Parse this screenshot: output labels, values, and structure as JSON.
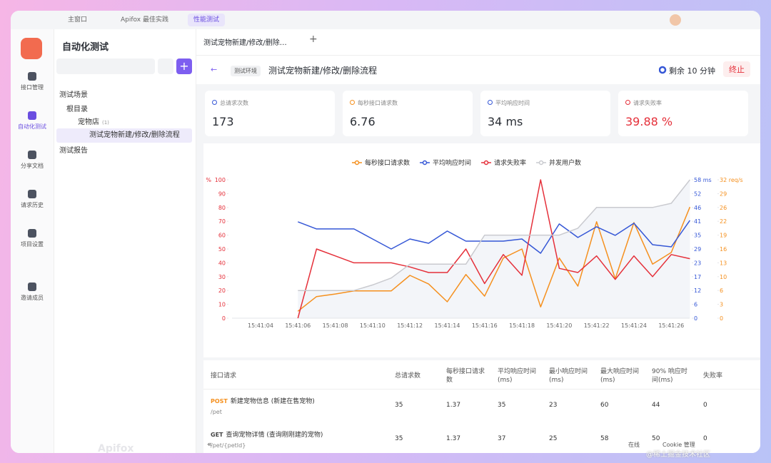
{
  "tabs": [
    "主窗口",
    "Apifox 最佳实践",
    "性能测试"
  ],
  "sidebar": [
    "接口管理",
    "自动化测试",
    "分享文档",
    "请求历史",
    "项目设置",
    "邀请成员"
  ],
  "panel": {
    "title": "自动化测试",
    "tree": [
      "测试场景",
      "根目录",
      "宠物店",
      "(1)",
      "测试宠物新建/修改/删除流程",
      "测试报告"
    ],
    "watermark": "Apifox"
  },
  "main": {
    "tab": "测试宠物新建/修改/删除流程",
    "env": "测试环境",
    "title": "测试宠物新建/修改/删除流程",
    "remaining": "剩余 10 分钟",
    "stop": "终止"
  },
  "stats": [
    {
      "label": "总请求次数",
      "value": "173"
    },
    {
      "label": "每秒接口请求数",
      "value": "6.76"
    },
    {
      "label": "平均响应时间",
      "value": "34 ms"
    },
    {
      "label": "请求失败率",
      "value": "39.88 %"
    }
  ],
  "chart_data": {
    "type": "line",
    "ylabel": "%",
    "categories": [
      "15:41:04",
      null,
      "15:41:06",
      null,
      "15:41:08",
      null,
      "15:41:10",
      null,
      "15:41:12",
      null,
      "15:41:14",
      null,
      "15:41:16",
      null,
      "15:41:18",
      null,
      "15:41:20",
      null,
      "15:41:22",
      null,
      "15:41:24",
      null,
      "15:41:26",
      null
    ],
    "ylim": [
      0,
      100
    ],
    "yticks": [
      0,
      10,
      20,
      30,
      40,
      50,
      60,
      70,
      80,
      90,
      100
    ],
    "y2lim": [
      0,
      58
    ],
    "y2ticks": [
      0,
      {
        "value": 5.8,
        "label": "6"
      },
      {
        "value": 11.6,
        "label": "12"
      },
      {
        "value": 17.4,
        "label": "17"
      },
      {
        "value": 23.2,
        "label": "23"
      },
      29,
      {
        "value": 34.8,
        "label": "35"
      },
      {
        "value": 40.6,
        "label": "41"
      },
      {
        "value": 46.4,
        "label": "46"
      },
      {
        "value": 52.2,
        "label": "52"
      },
      {
        "value": 58,
        "label": "58 ms"
      }
    ],
    "y3lim": [
      0,
      32
    ],
    "y3ticks": [
      0,
      {
        "value": 3.2,
        "label": "3"
      },
      {
        "value": 6.4,
        "label": "6"
      },
      {
        "value": 9.6,
        "label": "10"
      },
      {
        "value": 12.8,
        "label": "13"
      },
      16,
      {
        "value": 19.2,
        "label": "19"
      },
      {
        "value": 22.4,
        "label": "22"
      },
      {
        "value": 25.6,
        "label": "26"
      },
      {
        "value": 28.8,
        "label": "29"
      },
      {
        "value": 32,
        "label": "32 req/s"
      }
    ],
    "grid": false,
    "series": [
      {
        "name": "每秒接口请求数",
        "color": "#f5901e",
        "axis": "y3",
        "values": [
          null,
          null,
          1.6,
          5,
          5.6,
          6.3,
          6.3,
          6.3,
          9.9,
          7.9,
          3.8,
          10.1,
          5.1,
          13.9,
          16,
          2.6,
          13.9,
          7.4,
          22.3,
          9.1,
          22.1,
          12.5,
          15.2,
          25.7
        ]
      },
      {
        "name": "平均响应时间",
        "color": "#3557d6",
        "axis": "y2",
        "values": [
          null,
          null,
          40.4,
          37.4,
          37.4,
          37.4,
          33.2,
          29,
          33.2,
          31.4,
          36.5,
          32.3,
          32.3,
          32.3,
          33.2,
          27.2,
          39.5,
          33.8,
          38.3,
          34.7,
          39.8,
          30.8,
          29.9,
          41
        ]
      },
      {
        "name": "请求失败率",
        "color": "#e5303a",
        "values": [
          null,
          null,
          0,
          50,
          45,
          40,
          40,
          40,
          37,
          33,
          33,
          50,
          25,
          46,
          31,
          100,
          36,
          33,
          45,
          28,
          45,
          30,
          46,
          43
        ]
      },
      {
        "name": "并发用户数",
        "color": "#c9cacf",
        "values": [
          null,
          null,
          20,
          20,
          20,
          20,
          24,
          29,
          39,
          39,
          39,
          39,
          60,
          60,
          60,
          60,
          60,
          65,
          80,
          80,
          80,
          80,
          83,
          100
        ]
      }
    ]
  },
  "table": {
    "header": [
      "接口请求",
      "总请求数",
      "每秒接口请求数",
      "平均响应时间(ms)",
      "最小响应时间(ms)",
      "最大响应时间(ms)",
      "90% 响应时间(ms)",
      "失败率"
    ],
    "rows": [
      {
        "method": "POST",
        "name": "新建宠物信息 (新建在售宠物)",
        "path": "/pet",
        "cells": [
          35,
          1.37,
          35,
          23,
          60,
          44,
          0
        ]
      },
      {
        "method": "GET",
        "name": "查询宠物详情 (查询刚刚建的宠物)",
        "path": "/pet/{petId}",
        "cells": [
          35,
          1.37,
          37,
          25,
          58,
          50,
          0
        ]
      }
    ]
  },
  "footer": [
    "在线",
    "Cookie 管理"
  ],
  "credit": "@稀土掘金技术社区"
}
